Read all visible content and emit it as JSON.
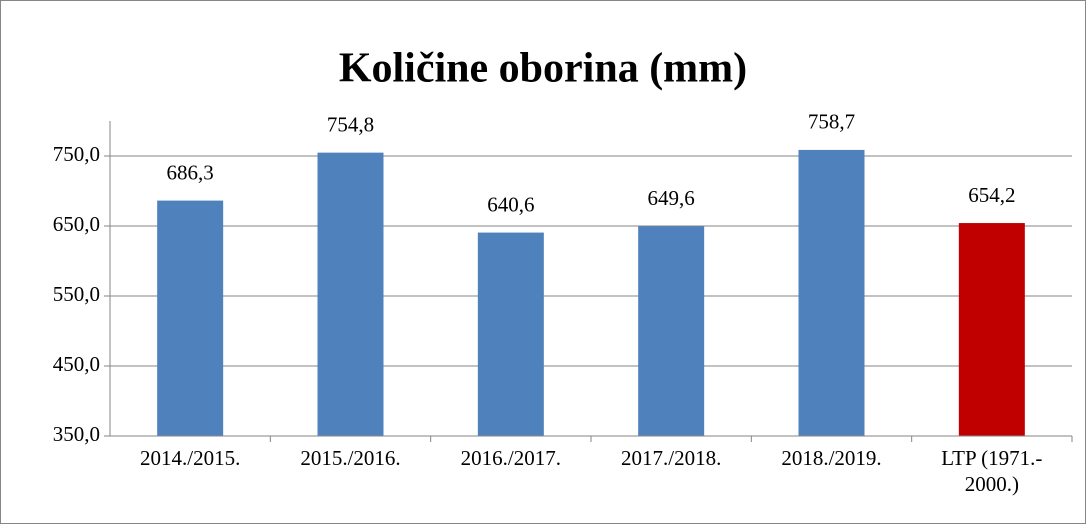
{
  "chart_data": {
    "type": "bar",
    "title": "Količine oborina (mm)",
    "categories": [
      "2014./2015.",
      "2015./2016.",
      "2016./2017.",
      "2017./2018.",
      "2018./2019.",
      "LTP (1971.- 2000.)"
    ],
    "values": [
      686.3,
      754.8,
      640.6,
      649.6,
      758.7,
      654.2
    ],
    "value_labels": [
      "686,3",
      "754,8",
      "640,6",
      "649,6",
      "758,7",
      "654,2"
    ],
    "colors": [
      "#4f81bd",
      "#4f81bd",
      "#4f81bd",
      "#4f81bd",
      "#4f81bd",
      "#c00000"
    ],
    "ylim": [
      350,
      800
    ],
    "yticks": [
      {
        "value": 350,
        "label": "350,0"
      },
      {
        "value": 450,
        "label": "450,0"
      },
      {
        "value": 550,
        "label": "550,0"
      },
      {
        "value": 650,
        "label": "650,0"
      },
      {
        "value": 750,
        "label": "750,0"
      }
    ],
    "grid": true
  }
}
